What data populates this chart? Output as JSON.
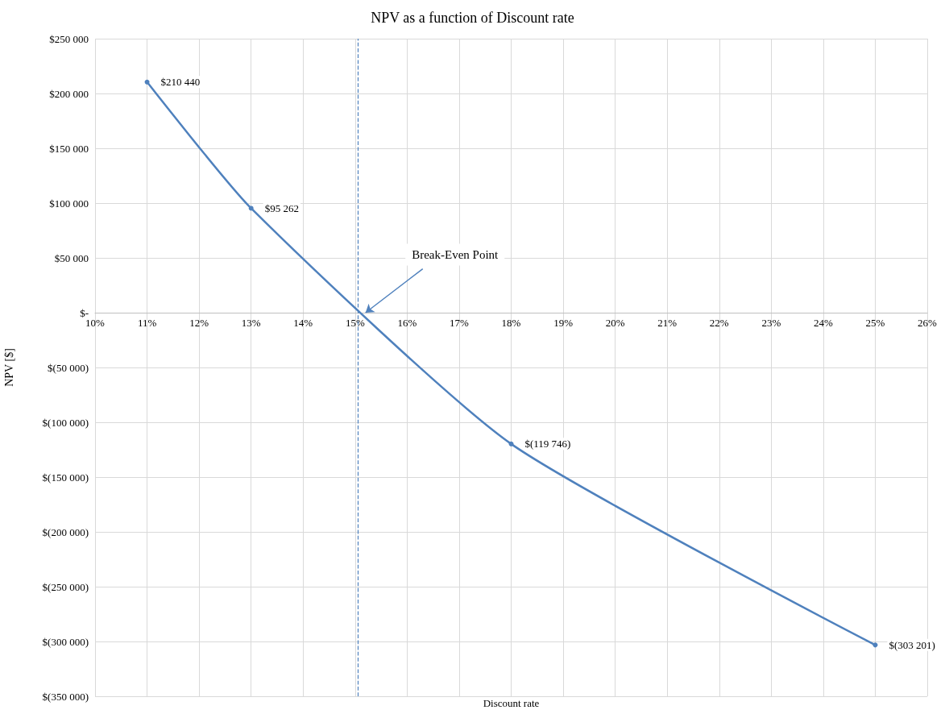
{
  "chart_data": {
    "type": "line",
    "title": "NPV as a function of Discount rate",
    "xlabel": "Discount rate",
    "ylabel": "NPV [$]",
    "x": [
      11,
      13,
      18,
      25
    ],
    "series": [
      {
        "color": "#4f81bd",
        "values": [
          210440,
          95262,
          -119746,
          -303201
        ],
        "value_labels": [
          "$210 440",
          "$95 262",
          "$(119 746)",
          "$(303 201)"
        ]
      }
    ],
    "xlim": [
      10,
      26
    ],
    "xticks": [
      {
        "value": 10,
        "label": "10%"
      },
      {
        "value": 11,
        "label": "11%"
      },
      {
        "value": 12,
        "label": "12%"
      },
      {
        "value": 13,
        "label": "13%"
      },
      {
        "value": 14,
        "label": "14%"
      },
      {
        "value": 15,
        "label": "15%"
      },
      {
        "value": 16,
        "label": "16%"
      },
      {
        "value": 17,
        "label": "17%"
      },
      {
        "value": 18,
        "label": "18%"
      },
      {
        "value": 19,
        "label": "19%"
      },
      {
        "value": 20,
        "label": "20%"
      },
      {
        "value": 21,
        "label": "21%"
      },
      {
        "value": 22,
        "label": "22%"
      },
      {
        "value": 23,
        "label": "23%"
      },
      {
        "value": 24,
        "label": "24%"
      },
      {
        "value": 25,
        "label": "25%"
      },
      {
        "value": 26,
        "label": "26%"
      }
    ],
    "ylim": [
      -350000,
      250000
    ],
    "yticks": [
      {
        "value": 250000,
        "label": "$250 000"
      },
      {
        "value": 200000,
        "label": "$200 000"
      },
      {
        "value": 150000,
        "label": "$150 000"
      },
      {
        "value": 100000,
        "label": "$100 000"
      },
      {
        "value": 50000,
        "label": "$50 000"
      },
      {
        "value": 0,
        "label": "$-"
      },
      {
        "value": -50000,
        "label": "$(50 000)"
      },
      {
        "value": -100000,
        "label": "$(100 000)"
      },
      {
        "value": -150000,
        "label": "$(150 000)"
      },
      {
        "value": -200000,
        "label": "$(200 000)"
      },
      {
        "value": -250000,
        "label": "$(250 000)"
      },
      {
        "value": -300000,
        "label": "$(300 000)"
      },
      {
        "value": -350000,
        "label": "$(350 000)"
      }
    ],
    "ref_lines": [
      {
        "axis": "x",
        "value": 15.05,
        "color": "#4f81bd",
        "line_style": "dashed"
      }
    ],
    "annotations": [
      {
        "text": "Break-Even Point",
        "x": 15.2,
        "y": 0
      }
    ],
    "grid": true,
    "marker": "circle",
    "line_style": "solid"
  }
}
